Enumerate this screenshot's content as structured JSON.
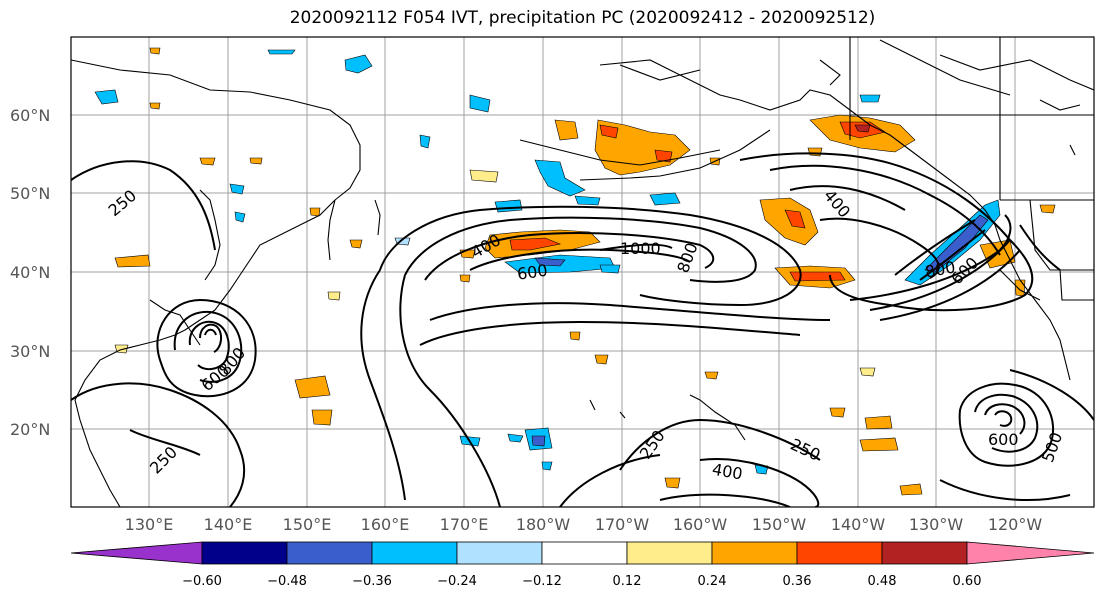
{
  "title": "2020092112 F054 IVT, precipitation PC (2020092412 - 2020092512)",
  "lat_labels": [
    "60°N",
    "50°N",
    "40°N",
    "30°N",
    "20°N"
  ],
  "lon_labels": [
    "130°E",
    "140°E",
    "150°E",
    "160°E",
    "170°E",
    "180°W",
    "170°W",
    "160°W",
    "150°W",
    "140°W",
    "130°W",
    "120°W"
  ],
  "colorbar": {
    "tick_labels": [
      "−0.60",
      "−0.48",
      "−0.36",
      "−0.24",
      "−0.12",
      "0.12",
      "0.24",
      "0.36",
      "0.48",
      "0.60"
    ],
    "colors": [
      "#9932cc",
      "#00008b",
      "#3a5fcd",
      "#00bfff",
      "#b0e2ff",
      "#ffffff",
      "#ffec8b",
      "#ffa500",
      "#ff4500",
      "#b22222",
      "#ff82ab"
    ]
  },
  "contour_labels": {
    "c250_nw": "250",
    "c250_sw": "250",
    "c250_hi": "250",
    "c250_east": "250",
    "c400_cent": "400",
    "c400_east": "400",
    "c400_south": "400",
    "c600_cent": "600",
    "c600_wpac": "600",
    "c800_wpac": "800",
    "c800_cent": "800",
    "c1000": "1000",
    "c800_ne": "800",
    "c600_ne": "600",
    "c600_epac": "600",
    "c500_epac": "500"
  }
}
